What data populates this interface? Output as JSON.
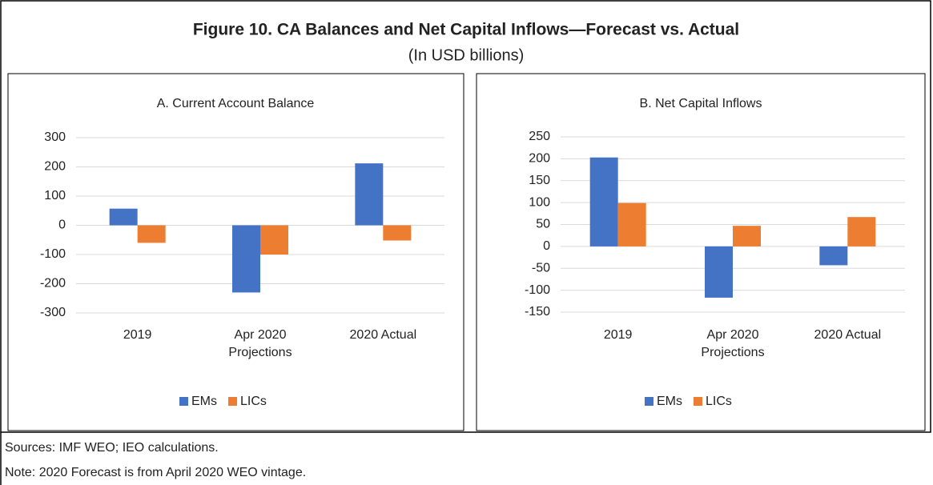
{
  "figure": {
    "title": "Figure 10. CA Balances and Net Capital Inflows—Forecast vs. Actual",
    "subtitle": "(In USD billions)",
    "sources": "Sources: IMF WEO; IEO calculations.",
    "note": "Note: 2020 Forecast is from April 2020  WEO vintage."
  },
  "chart_data": [
    {
      "type": "bar",
      "title": "A. Current Account Balance",
      "categories": [
        "2019",
        "Apr 2020 Projections",
        "2020 Actual"
      ],
      "series": [
        {
          "name": "EMs",
          "color": "#4472c4",
          "values": [
            57,
            -230,
            212
          ]
        },
        {
          "name": "LICs",
          "color": "#ed7d31",
          "values": [
            -60,
            -100,
            -52
          ]
        }
      ],
      "ylim": [
        -300,
        300
      ],
      "yticks": [
        -300,
        -200,
        -100,
        0,
        100,
        200,
        300
      ],
      "grid": true,
      "legend": "bottom"
    },
    {
      "type": "bar",
      "title": "B. Net Capital Inflows",
      "categories": [
        "2019",
        "Apr 2020 Projections",
        "2020 Actual"
      ],
      "series": [
        {
          "name": "EMs",
          "color": "#4472c4",
          "values": [
            203,
            -117,
            -43
          ]
        },
        {
          "name": "LICs",
          "color": "#ed7d31",
          "values": [
            99,
            47,
            67
          ]
        }
      ],
      "ylim": [
        -150,
        250
      ],
      "yticks": [
        -150,
        -100,
        -50,
        0,
        50,
        100,
        150,
        200,
        250
      ],
      "grid": true,
      "legend": "bottom"
    }
  ]
}
